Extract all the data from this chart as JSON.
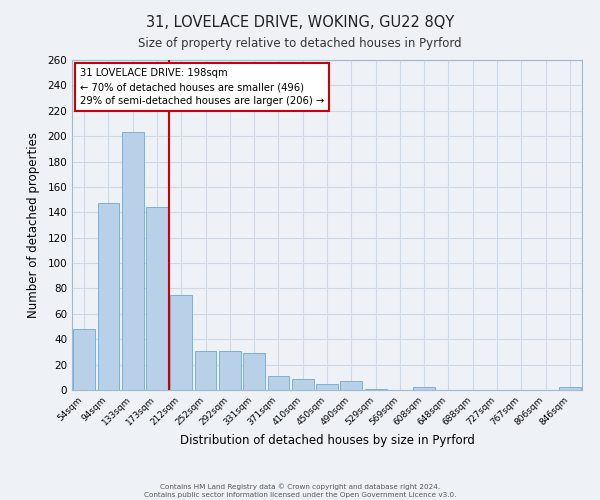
{
  "title_line1": "31, LOVELACE DRIVE, WOKING, GU22 8QY",
  "title_line2": "Size of property relative to detached houses in Pyrford",
  "xlabel": "Distribution of detached houses by size in Pyrford",
  "ylabel": "Number of detached properties",
  "bin_labels": [
    "54sqm",
    "94sqm",
    "133sqm",
    "173sqm",
    "212sqm",
    "252sqm",
    "292sqm",
    "331sqm",
    "371sqm",
    "410sqm",
    "450sqm",
    "490sqm",
    "529sqm",
    "569sqm",
    "608sqm",
    "648sqm",
    "688sqm",
    "727sqm",
    "767sqm",
    "806sqm",
    "846sqm"
  ],
  "bar_heights": [
    48,
    147,
    203,
    144,
    75,
    31,
    31,
    29,
    11,
    9,
    5,
    7,
    1,
    0,
    2,
    0,
    0,
    0,
    0,
    0,
    2
  ],
  "bar_color": "#b8d0e8",
  "bar_edge_color": "#6aaad4",
  "vline_color": "#cc0000",
  "vline_x": 3.5,
  "annotation_title": "31 LOVELACE DRIVE: 198sqm",
  "annotation_line1": "← 70% of detached houses are smaller (496)",
  "annotation_line2": "29% of semi-detached houses are larger (206) →",
  "annotation_box_color": "#cc0000",
  "ylim": [
    0,
    260
  ],
  "yticks": [
    0,
    20,
    40,
    60,
    80,
    100,
    120,
    140,
    160,
    180,
    200,
    220,
    240,
    260
  ],
  "grid_color": "#cdd9e5",
  "background_color": "#eef2f7",
  "footer_line1": "Contains HM Land Registry data © Crown copyright and database right 2024.",
  "footer_line2": "Contains public sector information licensed under the Open Government Licence v3.0."
}
